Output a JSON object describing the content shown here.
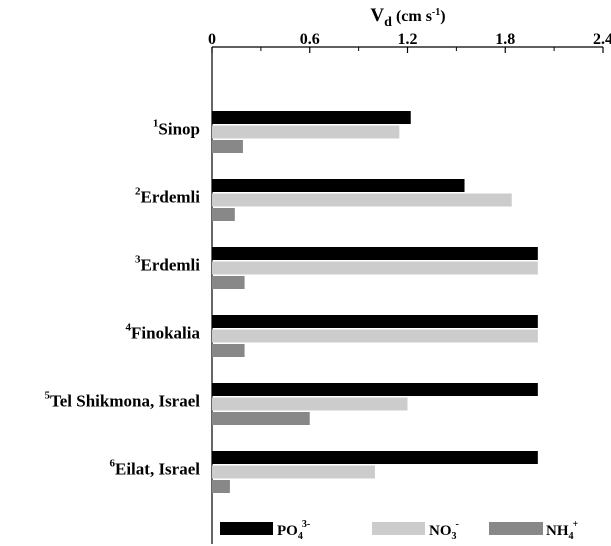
{
  "chart_data": {
    "type": "bar",
    "orientation": "horizontal",
    "axis_position": "top",
    "xlabel": {
      "main": "V",
      "subscript": "d",
      "units_prefix": " (cm s",
      "units_sup": "-1",
      "units_suffix": ")"
    },
    "xlim": [
      0,
      2.4
    ],
    "xticks": [
      "0",
      "0.6",
      "1.2",
      "1.8",
      "2.4"
    ],
    "grid": false,
    "legend_position": "bottom",
    "categories": [
      {
        "sup": "1",
        "label": "Sinop"
      },
      {
        "sup": "2",
        "label": "Erdemli"
      },
      {
        "sup": "3",
        "label": "Erdemli"
      },
      {
        "sup": "4",
        "label": "Finokalia"
      },
      {
        "sup": "5",
        "label": "Tel Shikmona, Israel"
      },
      {
        "sup": "6",
        "label": "Eilat, Israel"
      }
    ],
    "series": [
      {
        "name": "PO4 3-",
        "legend": {
          "base": "PO",
          "sub": "4",
          "sup": "3-"
        },
        "color": "#000000",
        "values": [
          1.22,
          1.55,
          2.0,
          2.0,
          2.0,
          2.0
        ]
      },
      {
        "name": "NO3 -",
        "legend": {
          "base": "NO",
          "sub": "3",
          "sup": "-"
        },
        "color": "#cccccc",
        "values": [
          1.15,
          1.84,
          2.0,
          2.0,
          1.2,
          1.0
        ]
      },
      {
        "name": "NH4 +",
        "legend": {
          "base": "NH",
          "sub": "4",
          "sup": "+"
        },
        "color": "#888888",
        "values": [
          0.19,
          0.14,
          0.2,
          0.2,
          0.6,
          0.11
        ]
      }
    ]
  }
}
